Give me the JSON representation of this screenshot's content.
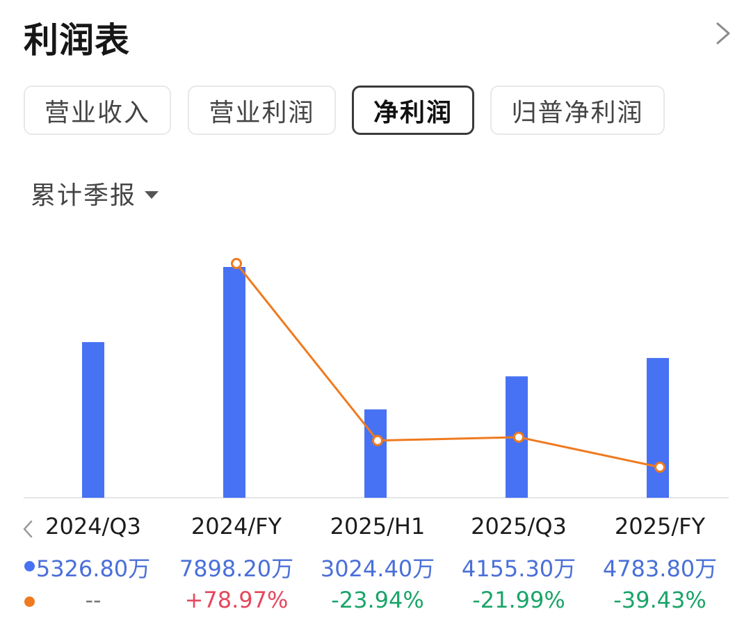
{
  "title": "利润表",
  "tabs": [
    {
      "label": "营业收入",
      "active": false
    },
    {
      "label": "营业利润",
      "active": false
    },
    {
      "label": "净利润",
      "active": true
    },
    {
      "label": "归普净利润",
      "active": false
    }
  ],
  "period_select": "累计季报",
  "colors": {
    "bar": "#4772f3",
    "line": "#ef7a1f",
    "positive": "#e5485d",
    "negative": "#1aa469",
    "neutral": "#777777",
    "value_text": "#4a6fd8"
  },
  "chart_data": {
    "type": "bar",
    "categories": [
      "2024/Q3",
      "2024/FY",
      "2025/H1",
      "2025/Q3",
      "2025/FY"
    ],
    "series": [
      {
        "name": "",
        "unit": "万",
        "values": [
          5326.8,
          7898.2,
          3024.4,
          4155.3,
          4783.8
        ],
        "labels": [
          "5326.80万",
          "7898.20万",
          "3024.40万",
          "4155.30万",
          "4783.80万"
        ]
      },
      {
        "name": "",
        "unit": "%",
        "type": "line",
        "values": [
          null,
          78.97,
          -23.94,
          -21.99,
          -39.43
        ],
        "labels": [
          "--",
          "+78.97%",
          "-23.94%",
          "-21.99%",
          "-39.43%"
        ]
      }
    ],
    "ylim": [
      0,
      7898.2
    ]
  }
}
